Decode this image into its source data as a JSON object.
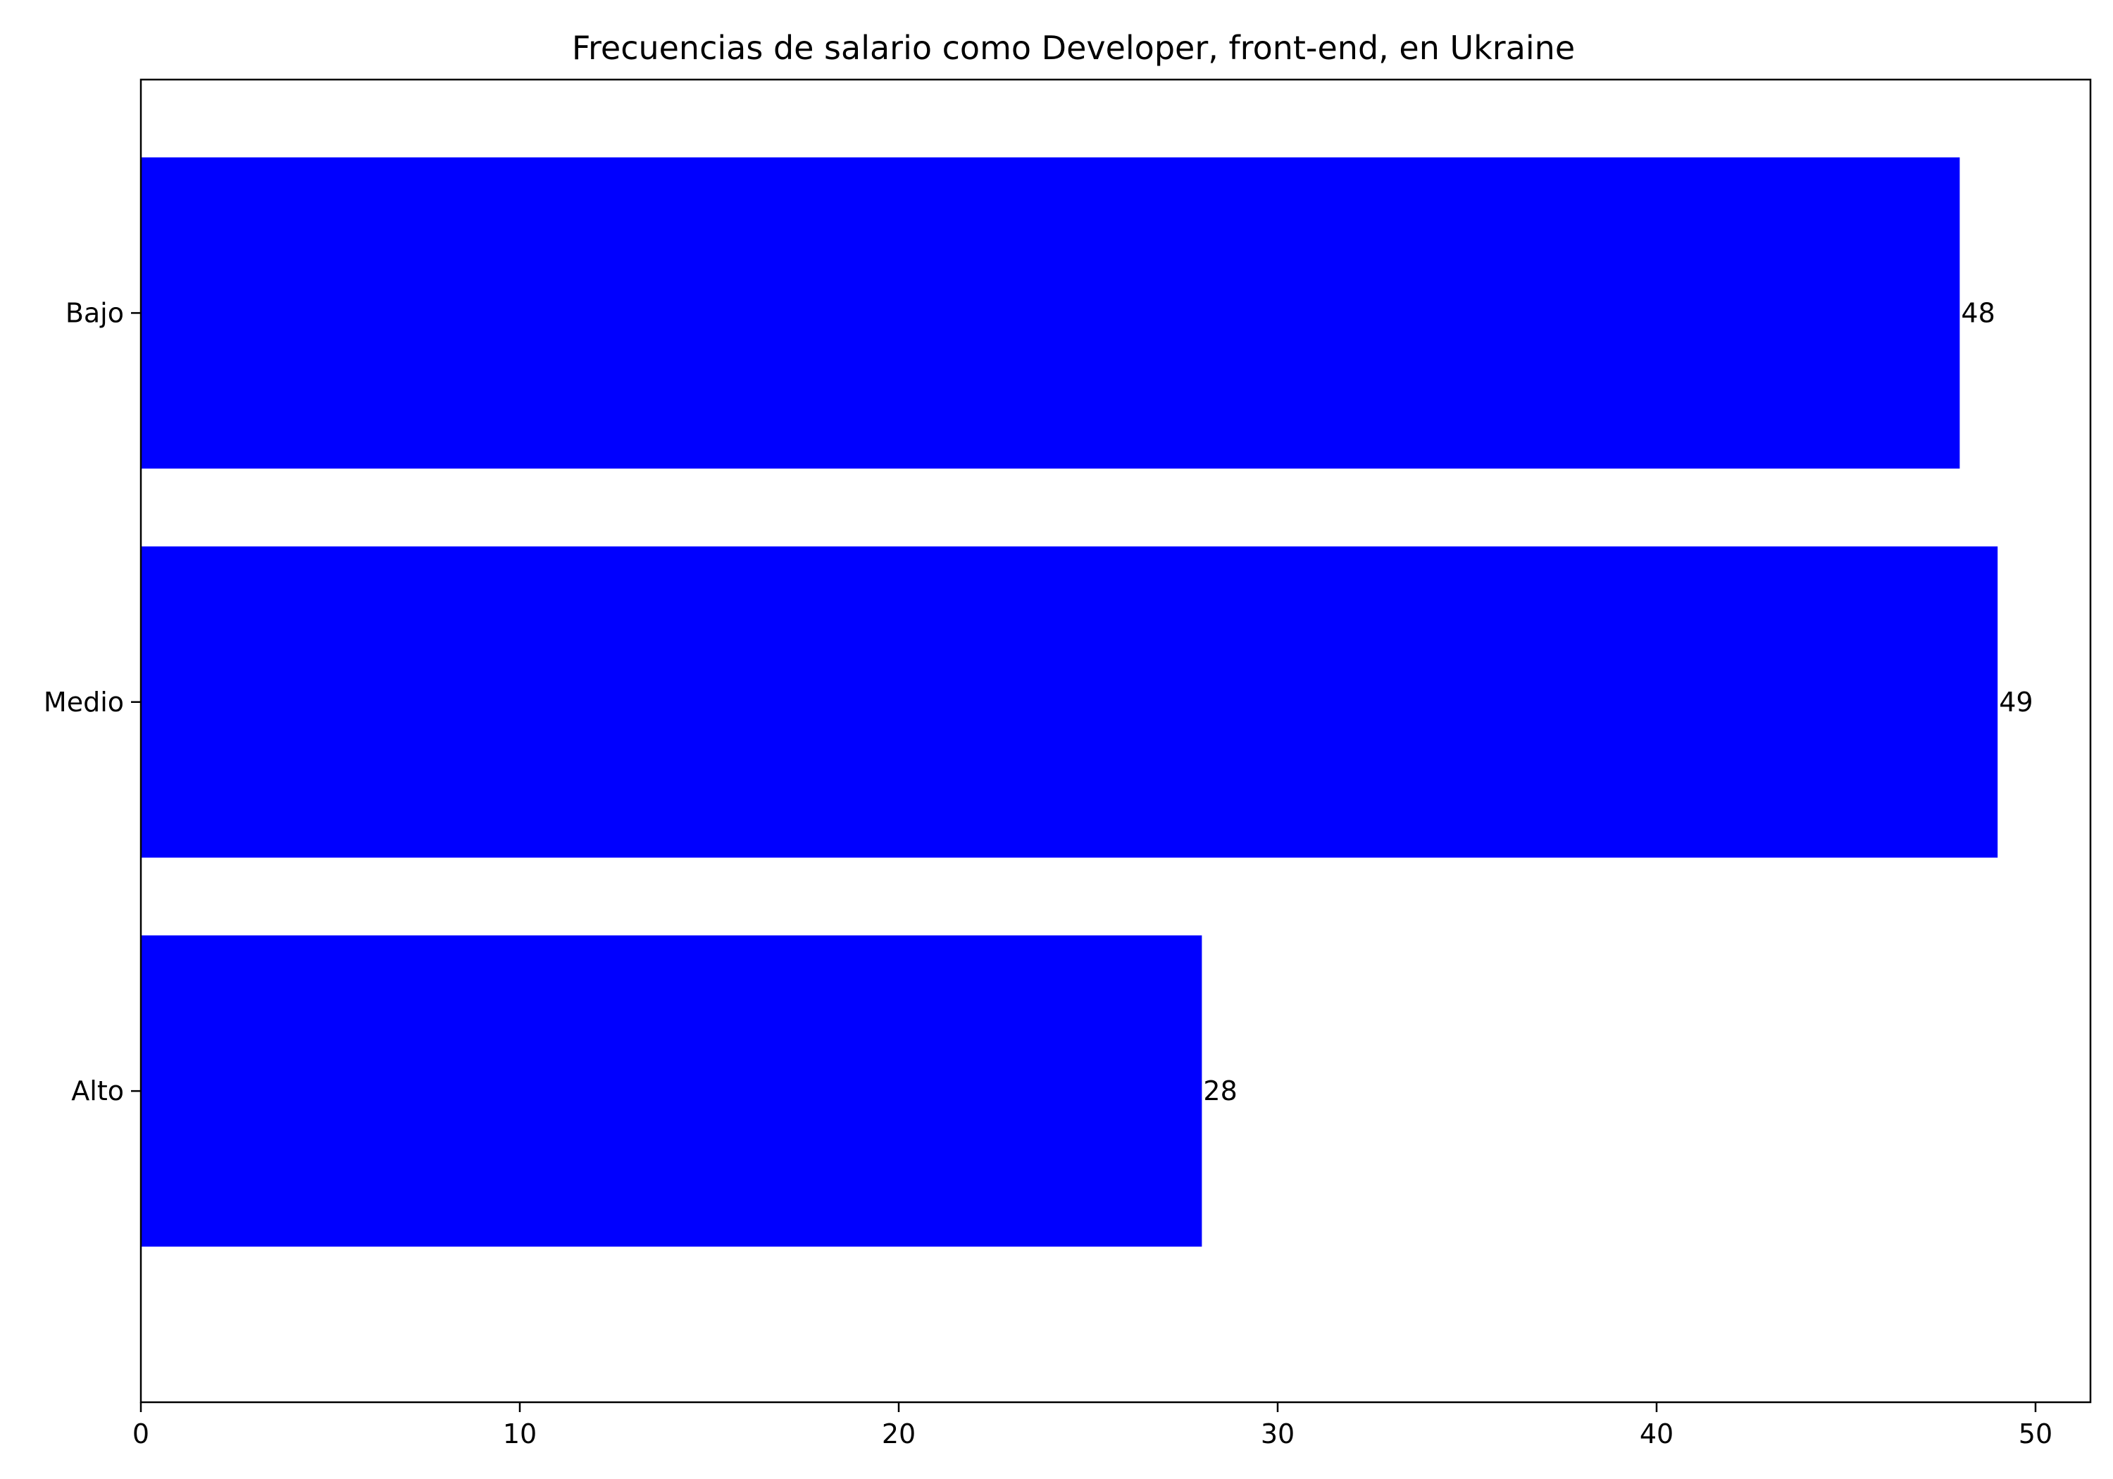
{
  "chart_data": {
    "type": "bar",
    "orientation": "horizontal",
    "title": "Frecuencias de salario como Developer, front-end, en Ukraine",
    "xlabel": "",
    "ylabel": "",
    "categories": [
      "Bajo",
      "Medio",
      "Alto"
    ],
    "values": [
      48,
      49,
      28
    ],
    "data_labels": [
      "48",
      "49",
      "28"
    ],
    "xlim": [
      0,
      51.45
    ],
    "xticks": [
      0,
      10,
      20,
      30,
      40,
      50
    ],
    "xtick_labels": [
      "0",
      "10",
      "20",
      "30",
      "40",
      "50"
    ],
    "bar_color": "#0000ff",
    "grid": false,
    "legend": "none"
  }
}
